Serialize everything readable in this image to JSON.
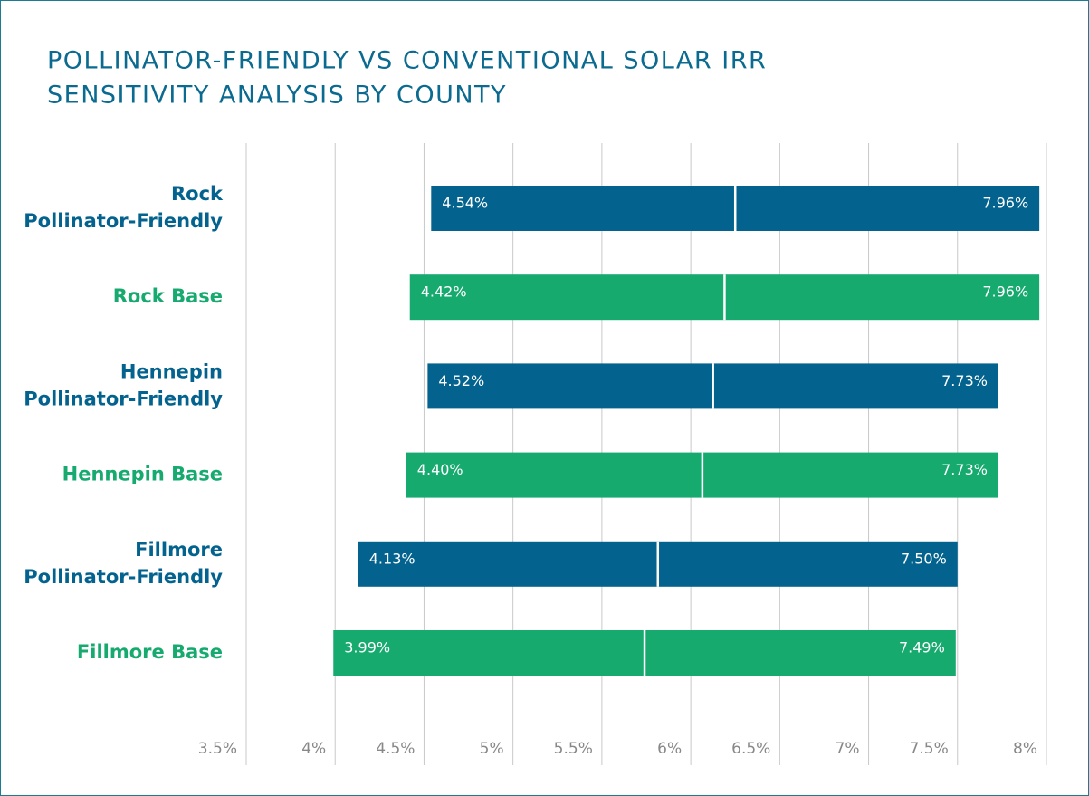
{
  "chart_data": {
    "type": "floating_bar",
    "title": [
      "POLLINATOR-FRIENDLY VS CONVENTIONAL SOLAR IRR",
      "SENSITIVITY ANALYSIS BY COUNTY"
    ],
    "categories": [
      [
        "Rock",
        "Pollinator-Friendly"
      ],
      [
        "Rock Base"
      ],
      [
        "Hennepin",
        "Pollinator-Friendly"
      ],
      [
        "Hennepin Base"
      ],
      [
        "Fillmore",
        "Pollinator-Friendly"
      ],
      [
        "Fillmore Base"
      ]
    ],
    "colors": [
      "#03638e",
      "#17aa6f",
      "#03638e",
      "#17aa6f",
      "#03638e",
      "#17aa6f"
    ],
    "values": [
      [
        4.54,
        7.96
      ],
      [
        4.42,
        7.96
      ],
      [
        4.52,
        7.73
      ],
      [
        4.4,
        7.73
      ],
      [
        4.13,
        7.5
      ],
      [
        3.99,
        7.49
      ]
    ],
    "value_labels": [
      [
        "4.54%",
        "7.96%"
      ],
      [
        "4.42%",
        "7.96%"
      ],
      [
        "4.52%",
        "7.73%"
      ],
      [
        "4.40%",
        "7.73%"
      ],
      [
        "4.13%",
        "7.50%"
      ],
      [
        "3.99%",
        "7.49%"
      ]
    ],
    "xlim": [
      3.5,
      8
    ],
    "xticks": [
      {
        "value": 3.5,
        "label": "3.5%"
      },
      {
        "value": 4,
        "label": "4%"
      },
      {
        "value": 4.5,
        "label": "4.5%"
      },
      {
        "value": 5,
        "label": "5%"
      },
      {
        "value": 5.5,
        "label": "5.5%"
      },
      {
        "value": 6,
        "label": "6%"
      },
      {
        "value": 6.5,
        "label": "6.5%"
      },
      {
        "value": 7,
        "label": "7%"
      },
      {
        "value": 7.5,
        "label": "7.5%"
      },
      {
        "value": 8,
        "label": "8%"
      }
    ],
    "grid": true
  }
}
